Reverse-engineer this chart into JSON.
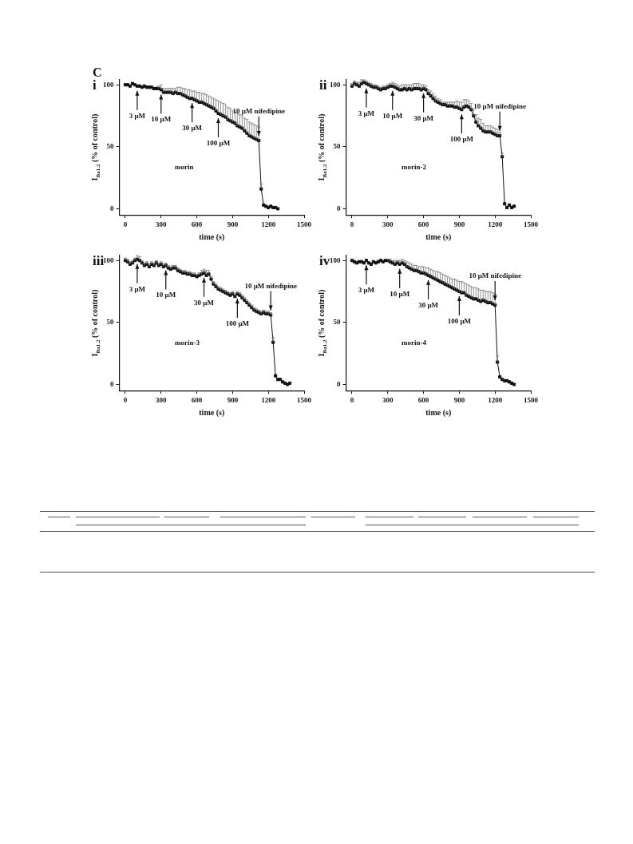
{
  "chart_data": [
    {
      "type": "line",
      "title": "i",
      "xlabel": "time (s)",
      "ylabel": "I$_{Ba1.2}$ (% of control)",
      "marker": "square",
      "xlim": [
        -50,
        1500
      ],
      "ylim": [
        -5,
        104
      ],
      "xticks": [
        0,
        300,
        600,
        900,
        1200,
        1500
      ],
      "yticks": [
        0,
        50,
        100
      ],
      "x": [
        0,
        20,
        40,
        60,
        80,
        100,
        120,
        140,
        160,
        180,
        200,
        220,
        240,
        260,
        280,
        300,
        320,
        340,
        360,
        380,
        400,
        420,
        440,
        460,
        480,
        500,
        520,
        540,
        560,
        580,
        600,
        620,
        640,
        660,
        680,
        700,
        720,
        740,
        760,
        780,
        800,
        820,
        840,
        860,
        880,
        900,
        920,
        940,
        960,
        980,
        1000,
        1020,
        1040,
        1060,
        1080,
        1100,
        1120,
        1140,
        1160,
        1180,
        1200,
        1220,
        1240,
        1260,
        1280
      ],
      "series": [
        {
          "name": "morin",
          "color": "#111111",
          "values": [
            100,
            100,
            99,
            101,
            100,
            99,
            99,
            98,
            99,
            98,
            98,
            98,
            97,
            97,
            97,
            96,
            94,
            94,
            94,
            94,
            93,
            94,
            93,
            93,
            92,
            91,
            90,
            89,
            89,
            88,
            87,
            86,
            86,
            85,
            84,
            83,
            82,
            81,
            79,
            77,
            76,
            75,
            74,
            72,
            71,
            70,
            69,
            67,
            66,
            65,
            63,
            61,
            59,
            58,
            57,
            56,
            55,
            16,
            3,
            2,
            1,
            2,
            1,
            1,
            0
          ],
          "errors": [
            null,
            null,
            null,
            null,
            null,
            null,
            null,
            null,
            null,
            null,
            null,
            null,
            null,
            null,
            [
              97,
              99
            ],
            [
              96,
              100
            ],
            [
              94,
              97
            ],
            [
              94,
              97
            ],
            [
              94,
              97
            ],
            [
              94,
              97
            ],
            [
              93,
              97
            ],
            [
              94,
              97
            ],
            [
              93,
              98
            ],
            [
              93,
              98
            ],
            [
              92,
              97
            ],
            [
              91,
              97
            ],
            [
              90,
              96
            ],
            [
              89,
              96
            ],
            [
              89,
              95
            ],
            [
              88,
              95
            ],
            [
              87,
              94
            ],
            [
              86,
              94
            ],
            [
              86,
              93
            ],
            [
              85,
              93
            ],
            [
              84,
              92
            ],
            [
              83,
              91
            ],
            [
              82,
              90
            ],
            [
              81,
              89
            ],
            [
              79,
              88
            ],
            [
              77,
              87
            ],
            [
              76,
              86
            ],
            [
              75,
              85
            ],
            [
              74,
              84
            ],
            [
              72,
              82
            ],
            [
              71,
              81
            ],
            [
              70,
              79
            ],
            [
              69,
              78
            ],
            [
              67,
              77
            ],
            [
              66,
              76
            ],
            [
              65,
              75
            ],
            [
              63,
              73
            ],
            [
              61,
              72
            ],
            [
              59,
              70
            ],
            [
              58,
              69
            ],
            [
              57,
              68
            ],
            [
              56,
              67
            ],
            [
              55,
              66
            ],
            [
              16,
              20
            ],
            null,
            null,
            null,
            null,
            null,
            null,
            null
          ]
        }
      ],
      "annotations": [
        "C",
        {
          "text": "3 μM",
          "x": 100,
          "y": 99
        },
        {
          "text": "10 μM",
          "x": 300,
          "y": 96
        },
        {
          "text": "30 μM",
          "x": 560,
          "y": 89
        },
        {
          "text": "100 μM",
          "x": 780,
          "y": 77
        },
        {
          "text": "10 μM nifedipine",
          "x": 1120,
          "y": 55
        }
      ]
    },
    {
      "type": "line",
      "title": "ii",
      "xlabel": "time (s)",
      "ylabel": "I$_{Ba1.2}$ (% of control)",
      "marker": "square",
      "xlim": [
        -50,
        1500
      ],
      "ylim": [
        -5,
        104
      ],
      "xticks": [
        0,
        300,
        600,
        900,
        1200,
        1500
      ],
      "yticks": [
        0,
        50,
        100
      ],
      "x": [
        0,
        20,
        40,
        60,
        80,
        100,
        120,
        140,
        160,
        180,
        200,
        220,
        240,
        260,
        280,
        300,
        320,
        340,
        360,
        380,
        400,
        420,
        440,
        460,
        480,
        500,
        520,
        540,
        560,
        580,
        600,
        620,
        640,
        660,
        680,
        700,
        720,
        740,
        760,
        780,
        800,
        820,
        840,
        860,
        880,
        900,
        920,
        940,
        960,
        980,
        1000,
        1020,
        1040,
        1060,
        1080,
        1100,
        1120,
        1140,
        1160,
        1180,
        1200,
        1220,
        1240,
        1260,
        1280,
        1300,
        1320,
        1340,
        1360
      ],
      "series": [
        {
          "name": "morin-2",
          "color": "#111111",
          "values": [
            99,
            101,
            100,
            99,
            101,
            102,
            101,
            100,
            99,
            98,
            98,
            97,
            96,
            97,
            97,
            98,
            99,
            99,
            98,
            97,
            96,
            96,
            97,
            96,
            97,
            96,
            97,
            97,
            97,
            96,
            97,
            96,
            93,
            91,
            89,
            87,
            86,
            85,
            84,
            84,
            83,
            83,
            83,
            82,
            82,
            81,
            80,
            82,
            83,
            82,
            80,
            75,
            70,
            67,
            65,
            63,
            62,
            62,
            62,
            61,
            60,
            59,
            59,
            42,
            4,
            1,
            3,
            1,
            2
          ],
          "errors": [
            [
              99,
              101
            ],
            [
              101,
              103
            ],
            [
              100,
              102
            ],
            [
              99,
              102
            ],
            [
              101,
              104
            ],
            [
              102,
              104
            ],
            [
              101,
              103
            ],
            [
              100,
              102
            ],
            [
              99,
              101
            ],
            [
              98,
              100
            ],
            [
              98,
              100
            ],
            [
              97,
              99
            ],
            [
              96,
              98
            ],
            [
              97,
              99
            ],
            [
              97,
              99
            ],
            [
              98,
              100
            ],
            [
              99,
              101
            ],
            [
              99,
              102
            ],
            [
              98,
              101
            ],
            [
              97,
              100
            ],
            [
              96,
              99
            ],
            [
              96,
              100
            ],
            [
              97,
              100
            ],
            [
              96,
              100
            ],
            [
              97,
              100
            ],
            [
              96,
              100
            ],
            [
              97,
              101
            ],
            [
              97,
              101
            ],
            [
              97,
              101
            ],
            [
              96,
              100
            ],
            [
              97,
              100
            ],
            [
              96,
              99
            ],
            [
              93,
              96
            ],
            [
              91,
              95
            ],
            [
              89,
              93
            ],
            [
              87,
              91
            ],
            [
              86,
              89
            ],
            [
              85,
              88
            ],
            [
              84,
              86
            ],
            [
              84,
              86
            ],
            [
              83,
              86
            ],
            [
              83,
              86
            ],
            [
              83,
              86
            ],
            [
              82,
              86
            ],
            [
              82,
              87
            ],
            [
              81,
              86
            ],
            [
              80,
              86
            ],
            [
              82,
              88
            ],
            [
              83,
              88
            ],
            [
              82,
              87
            ],
            [
              80,
              85
            ],
            [
              75,
              80
            ],
            [
              70,
              76
            ],
            [
              67,
              73
            ],
            [
              65,
              72
            ],
            [
              63,
              69
            ],
            [
              62,
              67
            ],
            [
              62,
              67
            ],
            [
              62,
              67
            ],
            [
              61,
              66
            ],
            [
              60,
              65
            ],
            [
              59,
              64
            ],
            [
              59,
              62
            ],
            [
              42,
              45
            ],
            null,
            null,
            null,
            null,
            null
          ]
        }
      ],
      "annotations": [
        {
          "text": "3 μM",
          "x": 120,
          "y": 101
        },
        {
          "text": "10 μM",
          "x": 340,
          "y": 99
        },
        {
          "text": "30 μM",
          "x": 600,
          "y": 97
        },
        {
          "text": "100 μM",
          "x": 920,
          "y": 80
        },
        {
          "text": "10 μM nifedipine",
          "x": 1240,
          "y": 59
        }
      ]
    },
    {
      "type": "line",
      "title": "iii",
      "xlabel": "time (s)",
      "ylabel": "I$_{Ba1.2}$ (% of control)",
      "marker": "square",
      "xlim": [
        -50,
        1500
      ],
      "ylim": [
        -5,
        104
      ],
      "xticks": [
        0,
        300,
        600,
        900,
        1200,
        1500
      ],
      "yticks": [
        0,
        50,
        100
      ],
      "x": [
        0,
        20,
        40,
        60,
        80,
        100,
        120,
        140,
        160,
        180,
        200,
        220,
        240,
        260,
        280,
        300,
        320,
        340,
        360,
        380,
        400,
        420,
        440,
        460,
        480,
        500,
        520,
        540,
        560,
        580,
        600,
        620,
        640,
        660,
        680,
        700,
        720,
        740,
        760,
        780,
        800,
        820,
        840,
        860,
        880,
        900,
        920,
        940,
        960,
        980,
        1000,
        1020,
        1040,
        1060,
        1080,
        1100,
        1120,
        1140,
        1160,
        1180,
        1200,
        1220,
        1240,
        1260,
        1280,
        1300,
        1320,
        1340,
        1360,
        1380
      ],
      "series": [
        {
          "name": "morin-3",
          "color": "#111111",
          "values": [
            100,
            99,
            97,
            98,
            100,
            101,
            100,
            98,
            96,
            97,
            95,
            97,
            96,
            98,
            96,
            97,
            95,
            96,
            94,
            93,
            94,
            94,
            92,
            91,
            90,
            90,
            89,
            89,
            88,
            88,
            87,
            88,
            89,
            90,
            88,
            89,
            85,
            81,
            79,
            77,
            76,
            75,
            74,
            73,
            72,
            73,
            71,
            73,
            72,
            70,
            68,
            66,
            64,
            62,
            60,
            59,
            58,
            57,
            58,
            57,
            57,
            56,
            34,
            7,
            4,
            4,
            2,
            1,
            0,
            1
          ],
          "errors": [
            [
              100,
              102
            ],
            [
              99,
              101
            ],
            [
              97,
              99
            ],
            [
              98,
              100
            ],
            [
              100,
              102
            ],
            [
              101,
              104
            ],
            [
              100,
              103
            ],
            [
              98,
              100
            ],
            [
              96,
              98
            ],
            [
              97,
              99
            ],
            [
              95,
              97
            ],
            [
              97,
              99
            ],
            [
              96,
              98
            ],
            [
              98,
              100
            ],
            [
              96,
              98
            ],
            [
              97,
              99
            ],
            [
              95,
              97
            ],
            [
              96,
              98
            ],
            [
              94,
              96
            ],
            [
              93,
              95
            ],
            [
              94,
              96
            ],
            [
              94,
              96
            ],
            [
              92,
              94
            ],
            [
              91,
              93
            ],
            [
              90,
              92
            ],
            [
              90,
              92
            ],
            [
              89,
              91
            ],
            [
              89,
              91
            ],
            [
              88,
              90
            ],
            [
              88,
              90
            ],
            [
              87,
              89
            ],
            [
              88,
              90
            ],
            [
              89,
              92
            ],
            [
              90,
              93
            ],
            [
              88,
              92
            ],
            [
              89,
              92
            ],
            [
              85,
              87
            ],
            [
              81,
              83
            ],
            [
              79,
              81
            ],
            [
              77,
              79
            ],
            [
              76,
              78
            ],
            [
              75,
              77
            ],
            [
              74,
              76
            ],
            [
              73,
              75
            ],
            [
              72,
              74
            ],
            [
              73,
              75
            ],
            [
              71,
              73
            ],
            [
              73,
              75
            ],
            [
              72,
              74
            ],
            [
              70,
              72
            ],
            [
              68,
              70
            ],
            [
              66,
              68
            ],
            [
              64,
              66
            ],
            [
              62,
              64
            ],
            [
              60,
              62
            ],
            [
              59,
              61
            ],
            [
              58,
              60
            ],
            [
              57,
              59
            ],
            [
              58,
              60
            ],
            [
              57,
              59
            ],
            [
              57,
              59
            ],
            [
              56,
              58
            ],
            [
              34,
              38
            ],
            null,
            null,
            null,
            null,
            null,
            null,
            null
          ]
        }
      ],
      "annotations": [
        {
          "text": "3 μM",
          "x": 100,
          "y": 101
        },
        {
          "text": "10 μM",
          "x": 340,
          "y": 96
        },
        {
          "text": "30 μM",
          "x": 660,
          "y": 90
        },
        {
          "text": "100 μM",
          "x": 940,
          "y": 73
        },
        {
          "text": "10 μM nifedipine",
          "x": 1220,
          "y": 56
        }
      ]
    },
    {
      "type": "line",
      "title": "iv",
      "xlabel": "time (s)",
      "ylabel": "I$_{Ba1.2}$ (% of control)",
      "marker": "square",
      "xlim": [
        -50,
        1500
      ],
      "ylim": [
        -5,
        104
      ],
      "xticks": [
        0,
        300,
        600,
        900,
        1200,
        1500
      ],
      "yticks": [
        0,
        50,
        100
      ],
      "x": [
        0,
        20,
        40,
        60,
        80,
        100,
        120,
        140,
        160,
        180,
        200,
        220,
        240,
        260,
        280,
        300,
        320,
        340,
        360,
        380,
        400,
        420,
        440,
        460,
        480,
        500,
        520,
        540,
        560,
        580,
        600,
        620,
        640,
        660,
        680,
        700,
        720,
        740,
        760,
        780,
        800,
        820,
        840,
        860,
        880,
        900,
        920,
        940,
        960,
        980,
        1000,
        1020,
        1040,
        1060,
        1080,
        1100,
        1120,
        1140,
        1160,
        1180,
        1200,
        1220,
        1240,
        1260,
        1280,
        1300,
        1320,
        1340,
        1360
      ],
      "series": [
        {
          "name": "morin-4",
          "color": "#111111",
          "values": [
            100,
            99,
            98,
            99,
            99,
            98,
            100,
            98,
            97,
            99,
            98,
            99,
            100,
            99,
            100,
            100,
            99,
            98,
            97,
            98,
            97,
            98,
            97,
            95,
            94,
            93,
            92,
            92,
            91,
            90,
            90,
            89,
            88,
            87,
            86,
            85,
            84,
            83,
            82,
            81,
            80,
            79,
            78,
            77,
            76,
            75,
            74,
            74,
            72,
            71,
            70,
            69,
            69,
            68,
            67,
            68,
            67,
            66,
            66,
            65,
            64,
            18,
            6,
            4,
            3,
            3,
            2,
            1,
            0
          ],
          "errors": [
            null,
            null,
            null,
            null,
            null,
            null,
            null,
            null,
            null,
            null,
            null,
            null,
            null,
            null,
            null,
            [
              100,
              101
            ],
            [
              99,
              101
            ],
            [
              98,
              100
            ],
            [
              97,
              100
            ],
            [
              98,
              100
            ],
            [
              97,
              100
            ],
            [
              98,
              101
            ],
            [
              97,
              100
            ],
            [
              95,
              99
            ],
            [
              94,
              98
            ],
            [
              93,
              97
            ],
            [
              92,
              96
            ],
            [
              92,
              96
            ],
            [
              91,
              95
            ],
            [
              90,
              95
            ],
            [
              90,
              95
            ],
            [
              89,
              94
            ],
            [
              88,
              94
            ],
            [
              87,
              93
            ],
            [
              86,
              92
            ],
            [
              85,
              91
            ],
            [
              84,
              91
            ],
            [
              83,
              90
            ],
            [
              82,
              89
            ],
            [
              81,
              88
            ],
            [
              80,
              87
            ],
            [
              79,
              86
            ],
            [
              78,
              85
            ],
            [
              77,
              85
            ],
            [
              76,
              84
            ],
            [
              75,
              83
            ],
            [
              74,
              83
            ],
            [
              74,
              82
            ],
            [
              72,
              81
            ],
            [
              71,
              80
            ],
            [
              70,
              79
            ],
            [
              69,
              78
            ],
            [
              69,
              78
            ],
            [
              68,
              77
            ],
            [
              67,
              76
            ],
            [
              68,
              76
            ],
            [
              67,
              75
            ],
            [
              66,
              75
            ],
            [
              66,
              75
            ],
            [
              65,
              74
            ],
            [
              64,
              73
            ],
            [
              18,
              23
            ],
            null,
            null,
            null,
            null,
            null,
            null,
            null
          ]
        }
      ],
      "annotations": [
        {
          "text": "3 μM",
          "x": 120,
          "y": 100
        },
        {
          "text": "10 μM",
          "x": 400,
          "y": 97
        },
        {
          "text": "30 μM",
          "x": 640,
          "y": 88
        },
        {
          "text": "100 μM",
          "x": 900,
          "y": 75
        },
        {
          "text": "10 μM nifedipine",
          "x": 1200,
          "y": 64
        }
      ]
    }
  ]
}
